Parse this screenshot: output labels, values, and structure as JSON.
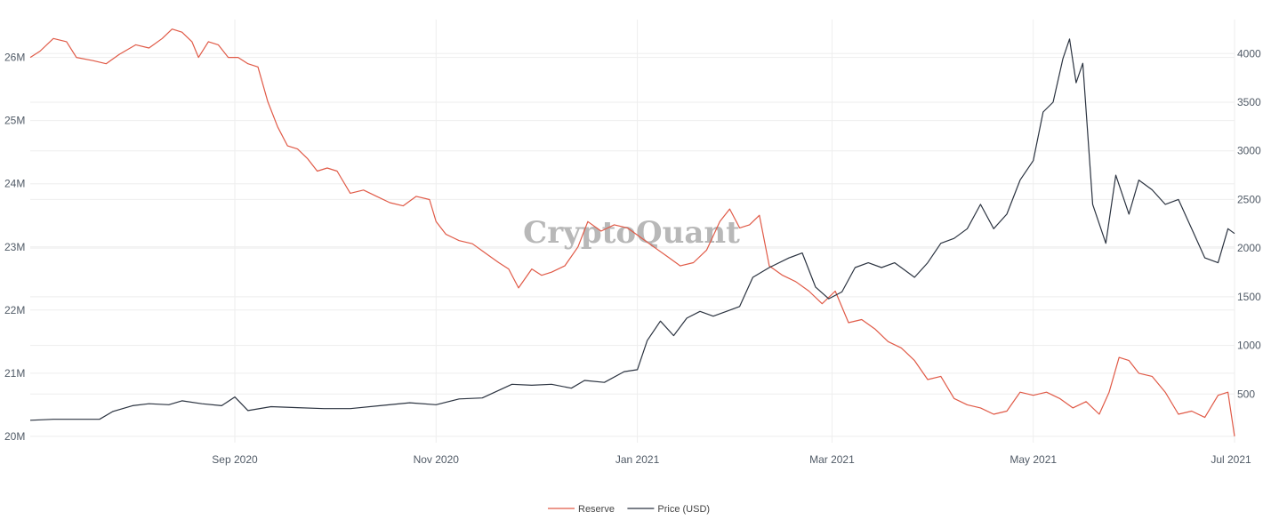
{
  "watermark": "CryptoQuant",
  "chart_data": {
    "type": "line",
    "title": "",
    "grid": true,
    "legend_position": "bottom-center",
    "x_range": [
      "2020-07-01",
      "2021-07-01"
    ],
    "x_ticks": [
      {
        "date": "2020-09-01",
        "label": "Sep 2020"
      },
      {
        "date": "2020-11-01",
        "label": "Nov 2020"
      },
      {
        "date": "2021-01-01",
        "label": "Jan 2021"
      },
      {
        "date": "2021-03-01",
        "label": "Mar 2021"
      },
      {
        "date": "2021-05-01",
        "label": "May 2021"
      },
      {
        "date": "2021-07-01",
        "label": "Jul 2021"
      }
    ],
    "y_left": {
      "range": [
        19900000,
        26600000
      ],
      "ticks": [
        {
          "value": 20000000,
          "label": "20M"
        },
        {
          "value": 21000000,
          "label": "21M"
        },
        {
          "value": 22000000,
          "label": "22M"
        },
        {
          "value": 23000000,
          "label": "23M"
        },
        {
          "value": 24000000,
          "label": "24M"
        },
        {
          "value": 25000000,
          "label": "25M"
        },
        {
          "value": 26000000,
          "label": "26M"
        }
      ]
    },
    "y_right": {
      "range": [
        0,
        4350
      ],
      "ticks": [
        {
          "value": 500,
          "label": "500"
        },
        {
          "value": 1000,
          "label": "1000"
        },
        {
          "value": 1500,
          "label": "1500"
        },
        {
          "value": 2000,
          "label": "2000"
        },
        {
          "value": 2500,
          "label": "2500"
        },
        {
          "value": 3000,
          "label": "3000"
        },
        {
          "value": 3500,
          "label": "3500"
        },
        {
          "value": 4000,
          "label": "4000"
        }
      ]
    },
    "series": [
      {
        "name": "Reserve",
        "axis": "left",
        "color": "#e05a47",
        "points": [
          [
            "2020-07-01",
            26000000
          ],
          [
            "2020-07-04",
            26100000
          ],
          [
            "2020-07-08",
            26300000
          ],
          [
            "2020-07-12",
            26250000
          ],
          [
            "2020-07-15",
            26000000
          ],
          [
            "2020-07-20",
            25950000
          ],
          [
            "2020-07-24",
            25900000
          ],
          [
            "2020-07-28",
            26050000
          ],
          [
            "2020-08-02",
            26200000
          ],
          [
            "2020-08-06",
            26150000
          ],
          [
            "2020-08-10",
            26300000
          ],
          [
            "2020-08-13",
            26450000
          ],
          [
            "2020-08-16",
            26400000
          ],
          [
            "2020-08-19",
            26250000
          ],
          [
            "2020-08-21",
            26000000
          ],
          [
            "2020-08-24",
            26250000
          ],
          [
            "2020-08-27",
            26200000
          ],
          [
            "2020-08-30",
            26000000
          ],
          [
            "2020-09-02",
            26000000
          ],
          [
            "2020-09-05",
            25900000
          ],
          [
            "2020-09-08",
            25850000
          ],
          [
            "2020-09-11",
            25300000
          ],
          [
            "2020-09-14",
            24900000
          ],
          [
            "2020-09-17",
            24600000
          ],
          [
            "2020-09-20",
            24550000
          ],
          [
            "2020-09-23",
            24400000
          ],
          [
            "2020-09-26",
            24200000
          ],
          [
            "2020-09-29",
            24250000
          ],
          [
            "2020-10-02",
            24200000
          ],
          [
            "2020-10-06",
            23850000
          ],
          [
            "2020-10-10",
            23900000
          ],
          [
            "2020-10-14",
            23800000
          ],
          [
            "2020-10-18",
            23700000
          ],
          [
            "2020-10-22",
            23650000
          ],
          [
            "2020-10-26",
            23800000
          ],
          [
            "2020-10-30",
            23750000
          ],
          [
            "2020-11-01",
            23400000
          ],
          [
            "2020-11-04",
            23200000
          ],
          [
            "2020-11-08",
            23100000
          ],
          [
            "2020-11-12",
            23050000
          ],
          [
            "2020-11-16",
            22900000
          ],
          [
            "2020-11-20",
            22750000
          ],
          [
            "2020-11-23",
            22650000
          ],
          [
            "2020-11-26",
            22350000
          ],
          [
            "2020-11-30",
            22650000
          ],
          [
            "2020-12-03",
            22550000
          ],
          [
            "2020-12-06",
            22600000
          ],
          [
            "2020-12-10",
            22700000
          ],
          [
            "2020-12-14",
            23000000
          ],
          [
            "2020-12-17",
            23400000
          ],
          [
            "2020-12-21",
            23250000
          ],
          [
            "2020-12-25",
            23350000
          ],
          [
            "2020-12-29",
            23300000
          ],
          [
            "2021-01-02",
            23150000
          ],
          [
            "2021-01-06",
            23000000
          ],
          [
            "2021-01-10",
            22850000
          ],
          [
            "2021-01-14",
            22700000
          ],
          [
            "2021-01-18",
            22750000
          ],
          [
            "2021-01-22",
            22950000
          ],
          [
            "2021-01-26",
            23400000
          ],
          [
            "2021-01-29",
            23600000
          ],
          [
            "2021-02-01",
            23300000
          ],
          [
            "2021-02-04",
            23350000
          ],
          [
            "2021-02-07",
            23500000
          ],
          [
            "2021-02-10",
            22700000
          ],
          [
            "2021-02-14",
            22550000
          ],
          [
            "2021-02-18",
            22450000
          ],
          [
            "2021-02-22",
            22300000
          ],
          [
            "2021-02-26",
            22100000
          ],
          [
            "2021-03-02",
            22300000
          ],
          [
            "2021-03-06",
            21800000
          ],
          [
            "2021-03-10",
            21850000
          ],
          [
            "2021-03-14",
            21700000
          ],
          [
            "2021-03-18",
            21500000
          ],
          [
            "2021-03-22",
            21400000
          ],
          [
            "2021-03-26",
            21200000
          ],
          [
            "2021-03-30",
            20900000
          ],
          [
            "2021-04-03",
            20950000
          ],
          [
            "2021-04-07",
            20600000
          ],
          [
            "2021-04-11",
            20500000
          ],
          [
            "2021-04-15",
            20450000
          ],
          [
            "2021-04-19",
            20350000
          ],
          [
            "2021-04-23",
            20400000
          ],
          [
            "2021-04-27",
            20700000
          ],
          [
            "2021-05-01",
            20650000
          ],
          [
            "2021-05-05",
            20700000
          ],
          [
            "2021-05-09",
            20600000
          ],
          [
            "2021-05-13",
            20450000
          ],
          [
            "2021-05-17",
            20550000
          ],
          [
            "2021-05-21",
            20350000
          ],
          [
            "2021-05-24",
            20700000
          ],
          [
            "2021-05-27",
            21250000
          ],
          [
            "2021-05-30",
            21200000
          ],
          [
            "2021-06-02",
            21000000
          ],
          [
            "2021-06-06",
            20950000
          ],
          [
            "2021-06-10",
            20700000
          ],
          [
            "2021-06-14",
            20350000
          ],
          [
            "2021-06-18",
            20400000
          ],
          [
            "2021-06-22",
            20300000
          ],
          [
            "2021-06-26",
            20650000
          ],
          [
            "2021-06-29",
            20700000
          ],
          [
            "2021-07-01",
            20000000
          ]
        ]
      },
      {
        "name": "Price (USD)",
        "axis": "right",
        "color": "#2b3340",
        "points": [
          [
            "2020-07-01",
            230
          ],
          [
            "2020-07-08",
            240
          ],
          [
            "2020-07-15",
            240
          ],
          [
            "2020-07-22",
            240
          ],
          [
            "2020-07-26",
            320
          ],
          [
            "2020-08-01",
            380
          ],
          [
            "2020-08-06",
            400
          ],
          [
            "2020-08-12",
            390
          ],
          [
            "2020-08-16",
            430
          ],
          [
            "2020-08-22",
            400
          ],
          [
            "2020-08-28",
            380
          ],
          [
            "2020-09-01",
            470
          ],
          [
            "2020-09-05",
            330
          ],
          [
            "2020-09-12",
            370
          ],
          [
            "2020-09-20",
            360
          ],
          [
            "2020-09-28",
            350
          ],
          [
            "2020-10-06",
            350
          ],
          [
            "2020-10-15",
            380
          ],
          [
            "2020-10-24",
            410
          ],
          [
            "2020-11-01",
            390
          ],
          [
            "2020-11-08",
            450
          ],
          [
            "2020-11-15",
            460
          ],
          [
            "2020-11-24",
            600
          ],
          [
            "2020-11-30",
            590
          ],
          [
            "2020-12-06",
            600
          ],
          [
            "2020-12-12",
            560
          ],
          [
            "2020-12-16",
            640
          ],
          [
            "2020-12-22",
            620
          ],
          [
            "2020-12-28",
            730
          ],
          [
            "2021-01-01",
            750
          ],
          [
            "2021-01-04",
            1050
          ],
          [
            "2021-01-08",
            1250
          ],
          [
            "2021-01-12",
            1100
          ],
          [
            "2021-01-16",
            1280
          ],
          [
            "2021-01-20",
            1350
          ],
          [
            "2021-01-24",
            1300
          ],
          [
            "2021-01-28",
            1350
          ],
          [
            "2021-02-01",
            1400
          ],
          [
            "2021-02-05",
            1700
          ],
          [
            "2021-02-10",
            1800
          ],
          [
            "2021-02-16",
            1900
          ],
          [
            "2021-02-20",
            1950
          ],
          [
            "2021-02-24",
            1600
          ],
          [
            "2021-02-28",
            1480
          ],
          [
            "2021-03-04",
            1550
          ],
          [
            "2021-03-08",
            1800
          ],
          [
            "2021-03-12",
            1850
          ],
          [
            "2021-03-16",
            1800
          ],
          [
            "2021-03-20",
            1850
          ],
          [
            "2021-03-26",
            1700
          ],
          [
            "2021-03-30",
            1850
          ],
          [
            "2021-04-03",
            2050
          ],
          [
            "2021-04-07",
            2100
          ],
          [
            "2021-04-11",
            2200
          ],
          [
            "2021-04-15",
            2450
          ],
          [
            "2021-04-19",
            2200
          ],
          [
            "2021-04-23",
            2350
          ],
          [
            "2021-04-27",
            2700
          ],
          [
            "2021-05-01",
            2900
          ],
          [
            "2021-05-04",
            3400
          ],
          [
            "2021-05-07",
            3500
          ],
          [
            "2021-05-10",
            3950
          ],
          [
            "2021-05-12",
            4150
          ],
          [
            "2021-05-14",
            3700
          ],
          [
            "2021-05-16",
            3900
          ],
          [
            "2021-05-19",
            2450
          ],
          [
            "2021-05-23",
            2050
          ],
          [
            "2021-05-26",
            2750
          ],
          [
            "2021-05-30",
            2350
          ],
          [
            "2021-06-02",
            2700
          ],
          [
            "2021-06-06",
            2600
          ],
          [
            "2021-06-10",
            2450
          ],
          [
            "2021-06-14",
            2500
          ],
          [
            "2021-06-18",
            2200
          ],
          [
            "2021-06-22",
            1900
          ],
          [
            "2021-06-26",
            1850
          ],
          [
            "2021-06-29",
            2200
          ],
          [
            "2021-07-01",
            2150
          ]
        ]
      }
    ]
  }
}
